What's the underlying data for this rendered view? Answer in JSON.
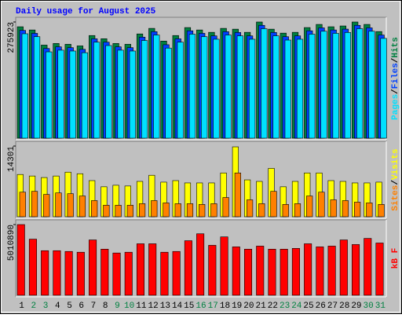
{
  "chart_data": [
    {
      "type": "bar",
      "title": "Daily usage for August 2025",
      "categories": [
        "1",
        "2",
        "3",
        "4",
        "5",
        "6",
        "7",
        "8",
        "9",
        "10",
        "11",
        "12",
        "13",
        "14",
        "15",
        "16",
        "17",
        "18",
        "19",
        "20",
        "21",
        "22",
        "23",
        "24",
        "25",
        "26",
        "27",
        "28",
        "29",
        "30",
        "31"
      ],
      "weekend_days": [
        "2",
        "3",
        "9",
        "10",
        "16",
        "17",
        "23",
        "24",
        "30",
        "31"
      ],
      "weekend_color": "#008040",
      "weekday_color": "#000000",
      "legend_separator": "/",
      "ylim": [
        0,
        275923
      ],
      "yticks": [
        275923
      ],
      "series": [
        {
          "name": "Pages",
          "color": "#00e0ff",
          "values": [
            248000,
            241000,
            205000,
            209000,
            207000,
            203000,
            228000,
            220000,
            209000,
            207000,
            232000,
            245000,
            214000,
            228000,
            247000,
            241000,
            235000,
            245000,
            243000,
            235000,
            260000,
            243000,
            233000,
            235000,
            247000,
            254000,
            249000,
            251000,
            260000,
            254000,
            237000
          ]
        },
        {
          "name": "Files",
          "color": "#0040ff",
          "values": [
            256000,
            249000,
            213000,
            217000,
            215000,
            211000,
            236000,
            228000,
            217000,
            215000,
            240000,
            253000,
            222000,
            236000,
            255000,
            249000,
            243000,
            253000,
            251000,
            243000,
            268000,
            251000,
            241000,
            243000,
            255000,
            262000,
            257000,
            259000,
            268000,
            262000,
            245000
          ]
        },
        {
          "name": "Hits",
          "color": "#008040",
          "values": [
            264600,
            257000,
            221100,
            224900,
            223000,
            219200,
            243800,
            236200,
            224900,
            223000,
            247600,
            260800,
            230600,
            243800,
            262700,
            257000,
            251400,
            260800,
            258900,
            251400,
            275900,
            258900,
            249500,
            251400,
            262700,
            270200,
            264600,
            266500,
            275900,
            270200,
            253200
          ]
        }
      ]
    },
    {
      "type": "bar",
      "legend_separator": "/",
      "ylim": [
        0,
        14301
      ],
      "yticks": [
        14301
      ],
      "series": [
        {
          "name": "Sites",
          "color": "#ff8000",
          "values": [
            4970,
            5130,
            4510,
            4820,
            4660,
            4200,
            3260,
            2330,
            2330,
            2330,
            2640,
            3260,
            2800,
            2640,
            2640,
            2490,
            2640,
            3890,
            8860,
            3420,
            2640,
            5130,
            2490,
            2640,
            4200,
            4970,
            3420,
            3260,
            2950,
            2800,
            2490
          ]
        },
        {
          "name": "Visits",
          "color": "#ffff00",
          "values": [
            8550,
            8240,
            7930,
            8240,
            9020,
            8700,
            7310,
            6060,
            6370,
            6220,
            7150,
            8390,
            7000,
            7310,
            6840,
            6840,
            6840,
            8860,
            14140,
            7460,
            7150,
            9790,
            6060,
            7150,
            8860,
            8860,
            7310,
            7150,
            6840,
            6840,
            7000
          ]
        }
      ]
    },
    {
      "type": "bar",
      "ylim": [
        0,
        5010890
      ],
      "yticks": [
        5010890
      ],
      "series": [
        {
          "name": "kB F",
          "color": "#ff0000",
          "values": [
            5010890,
            3976000,
            3159000,
            3159000,
            3105000,
            3050000,
            3922000,
            3268000,
            2996000,
            3050000,
            3649000,
            3649000,
            3050000,
            3105000,
            3867000,
            4357000,
            3540000,
            4139000,
            3431000,
            3268000,
            3486000,
            3268000,
            3268000,
            3322000,
            3649000,
            3431000,
            3486000,
            3922000,
            3595000,
            4030000,
            3704000
          ]
        }
      ]
    }
  ]
}
